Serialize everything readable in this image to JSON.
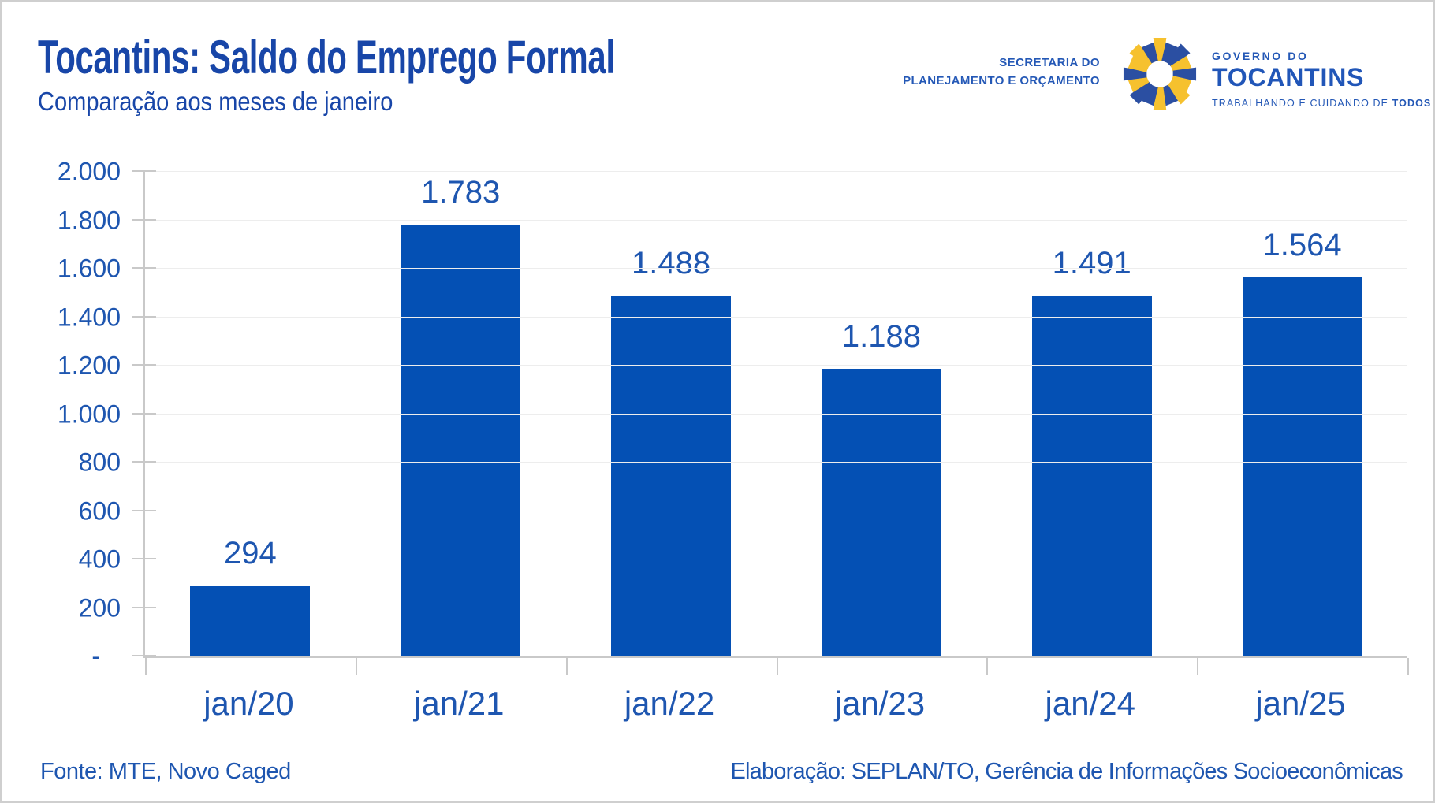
{
  "header": {
    "title": "Tocantins: Saldo do Emprego Formal",
    "subtitle": "Comparação aos meses de janeiro"
  },
  "logo": {
    "secretaria_line1": "SECRETARIA DO",
    "secretaria_line2": "PLANEJAMENTO E ORÇAMENTO",
    "governo_line": "GOVERNO DO",
    "state_name": "TOCANTINS",
    "tagline_prefix": "TRABALHANDO E CUIDANDO DE ",
    "tagline_bold": "TODOS",
    "colors": {
      "ray_blue": "#2b4fa2",
      "ray_yellow": "#f6c12e",
      "text_blue": "#2458b6"
    }
  },
  "chart_data": {
    "type": "bar",
    "title": "Tocantins: Saldo do Emprego Formal",
    "subtitle": "Comparação aos meses de janeiro",
    "categories": [
      "jan/20",
      "jan/21",
      "jan/22",
      "jan/23",
      "jan/24",
      "jan/25"
    ],
    "values": [
      294,
      1783,
      1488,
      1188,
      1491,
      1564
    ],
    "value_labels": [
      "294",
      "1.783",
      "1.488",
      "1.188",
      "1.491",
      "1.564"
    ],
    "xlabel": "",
    "ylabel": "",
    "ylim": [
      0,
      2000
    ],
    "y_tick_values": [
      2000,
      1800,
      1600,
      1400,
      1200,
      1000,
      800,
      600,
      400,
      200,
      0
    ],
    "y_tick_labels": [
      "2.000",
      "1.800",
      "1.600",
      "1.400",
      "1.200",
      "1.000",
      "800",
      "600",
      "400",
      "200",
      "-"
    ],
    "grid": "horizontal-light",
    "legend": "none",
    "bar_color": "#0450b4",
    "text_color": "#1e56b0"
  },
  "footer": {
    "source": "Fonte: MTE, Novo Caged",
    "elaboration": "Elaboração: SEPLAN/TO, Gerência de Informações Socioeconômicas"
  }
}
